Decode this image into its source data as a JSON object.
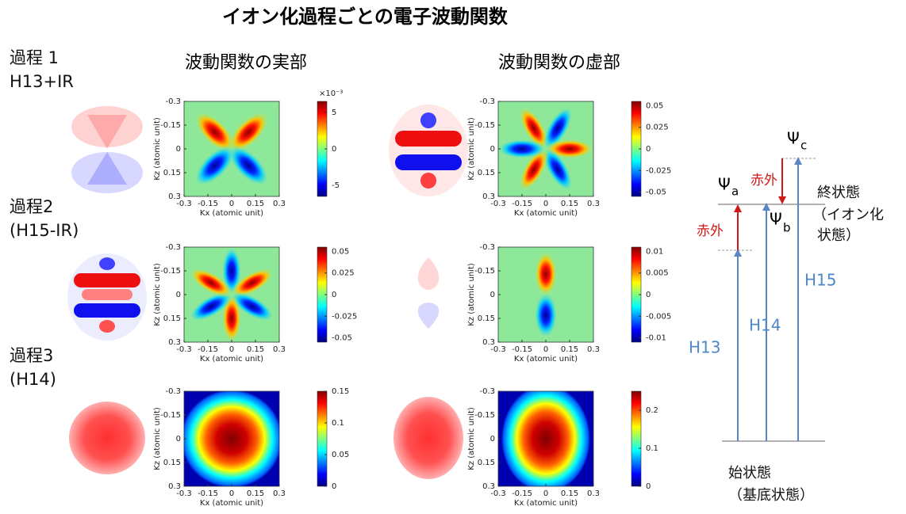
{
  "title": "イオン化過程ごとの電子波動関数",
  "column_headers": [
    "波動関数の実部",
    "波動関数の虚部"
  ],
  "rows": [
    [
      "過程 1",
      "H13+IR"
    ],
    [
      "過程2",
      "(H15-IR)"
    ],
    [
      "過程3",
      " (H14)"
    ]
  ],
  "panels": [
    {
      "xlabel": "Kx (atomic unit)",
      "ylabel": "Kz (atomic unit)",
      "xlim": [
        -0.3,
        0.3
      ],
      "ylim": [
        -0.3,
        0.3
      ],
      "xticks": [
        -0.3,
        -0.15,
        0,
        0.15,
        0.3
      ],
      "yticks": [
        -0.3,
        -0.15,
        0,
        0.15,
        0.3
      ],
      "clim": [
        -6.5,
        6.5
      ],
      "cticks": [
        -5,
        0,
        5
      ],
      "cbar_exponent": "×10⁻³"
    },
    {
      "xlabel": "Kx (atomic unit)",
      "ylabel": "Kz (atomic unit)",
      "xlim": [
        -0.3,
        0.3
      ],
      "ylim": [
        -0.3,
        0.3
      ],
      "xticks": [
        -0.3,
        -0.15,
        0,
        0.15,
        0.3
      ],
      "yticks": [
        -0.3,
        -0.15,
        0,
        0.15,
        0.3
      ],
      "clim": [
        -0.055,
        0.055
      ],
      "cticks": [
        -0.05,
        -0.025,
        0,
        0.025,
        0.05
      ]
    },
    {
      "xlabel": "Kx (atomic unit)",
      "ylabel": "Kz (atomic unit)",
      "xlim": [
        -0.3,
        0.3
      ],
      "ylim": [
        -0.3,
        0.3
      ],
      "xticks": [
        -0.3,
        -0.15,
        0,
        0.15,
        0.3
      ],
      "yticks": [
        -0.3,
        -0.15,
        0,
        0.15,
        0.3
      ],
      "clim": [
        -0.055,
        0.055
      ],
      "cticks": [
        -0.05,
        -0.025,
        0,
        0.025,
        0.05
      ]
    },
    {
      "xlabel": "Kx (atomic unit)",
      "ylabel": "Kz (atomic unit)",
      "xlim": [
        -0.3,
        0.3
      ],
      "ylim": [
        -0.3,
        0.3
      ],
      "xticks": [
        -0.3,
        -0.15,
        0,
        0.15,
        0.3
      ],
      "yticks": [
        -0.3,
        -0.15,
        0,
        0.15,
        0.3
      ],
      "clim": [
        -0.011,
        0.011
      ],
      "cticks": [
        -0.01,
        -0.005,
        0,
        0.005,
        0.01
      ]
    },
    {
      "xlabel": "Kx (atomic unit)",
      "ylabel": "Kz (atomic unit)",
      "xlim": [
        -0.3,
        0.3
      ],
      "ylim": [
        -0.3,
        0.3
      ],
      "xticks": [
        -0.3,
        -0.15,
        0,
        0.15,
        0.3
      ],
      "yticks": [
        -0.3,
        -0.15,
        0,
        0.15,
        0.3
      ],
      "clim": [
        0,
        0.15
      ],
      "cticks": [
        0,
        0.05,
        0.1,
        0.15
      ]
    },
    {
      "xlabel": "Kx (atomic unit)",
      "ylabel": "Kz (atomic unit)",
      "xlim": [
        -0.3,
        0.3
      ],
      "ylim": [
        -0.3,
        0.3
      ],
      "xticks": [
        -0.3,
        -0.15,
        0,
        0.15,
        0.3
      ],
      "yticks": [
        -0.3,
        -0.15,
        0,
        0.15,
        0.3
      ],
      "clim": [
        0,
        0.25
      ],
      "cticks": [
        0,
        0.1,
        0.2
      ]
    }
  ],
  "diagram": {
    "states": [
      {
        "symbol": "Ψ",
        "sub": "a"
      },
      {
        "symbol": "Ψ",
        "sub": "b"
      },
      {
        "symbol": "Ψ",
        "sub": "c"
      }
    ],
    "infrared": [
      "赤外",
      "赤外"
    ],
    "final_state": [
      "終状態",
      "（イオン化",
      "状態）"
    ],
    "initial_state": [
      "始状態",
      "（基底状態）"
    ],
    "harmonics": [
      "H13",
      "H14",
      "H15"
    ]
  }
}
